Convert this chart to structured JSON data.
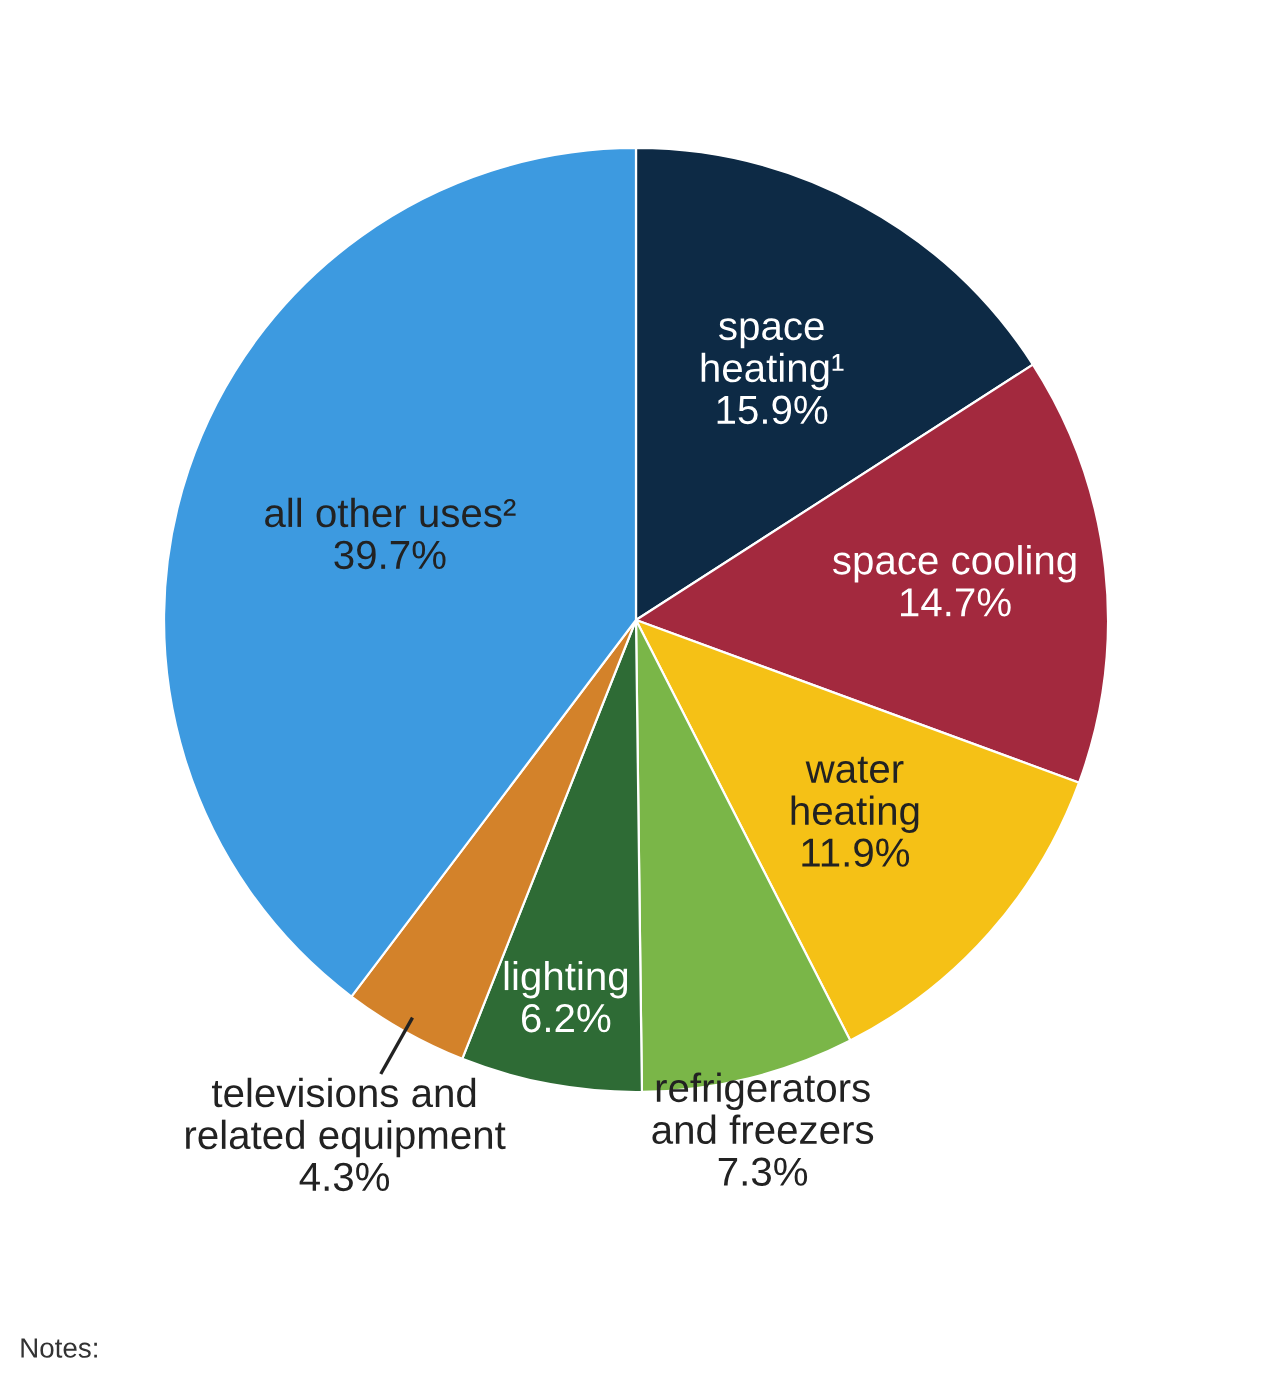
{
  "chart_data": {
    "type": "pie",
    "categories": [
      "space\nheating¹",
      "space cooling",
      "water\nheating",
      "refrigerators\nand freezers",
      "lighting",
      "televisions and\nrelated equipment",
      "all other uses²"
    ],
    "values": [
      15.9,
      14.7,
      11.9,
      7.3,
      6.2,
      4.3,
      39.7
    ],
    "colors": [
      "#0d2a45",
      "#a3293e",
      "#f5c116",
      "#7ab648",
      "#2e6b35",
      "#d3822a",
      "#3d9ae0"
    ],
    "value_labels": [
      "15.9%",
      "14.7%",
      "11.9%",
      "7.3%",
      "6.2%",
      "4.3%",
      "39.7%"
    ],
    "annotations": [
      "Notes:"
    ]
  }
}
